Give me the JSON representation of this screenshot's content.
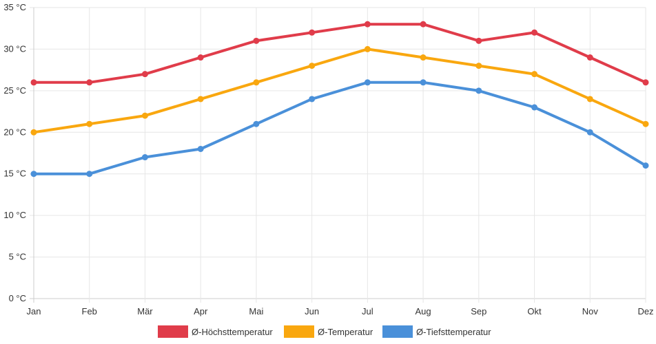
{
  "chart_data": {
    "type": "line",
    "title": "",
    "xlabel": "",
    "ylabel": "",
    "categories": [
      "Jan",
      "Feb",
      "Mär",
      "Apr",
      "Mai",
      "Jun",
      "Jul",
      "Aug",
      "Sep",
      "Okt",
      "Nov",
      "Dez"
    ],
    "ylim": [
      0,
      35
    ],
    "yticks": [
      0,
      5,
      10,
      15,
      20,
      25,
      30,
      35
    ],
    "ytick_labels": [
      "0 °C",
      "5 °C",
      "10 °C",
      "15 °C",
      "20 °C",
      "25 °C",
      "30 °C",
      "35 °C"
    ],
    "grid": true,
    "legend_position": "bottom",
    "series": [
      {
        "name": "Ø-Höchsttemperatur",
        "color": "#e03c4a",
        "values": [
          26,
          26,
          27,
          29,
          31,
          32,
          33,
          33,
          31,
          32,
          29,
          26
        ]
      },
      {
        "name": "Ø-Temperatur",
        "color": "#f9a70f",
        "values": [
          20,
          21,
          22,
          24,
          26,
          28,
          30,
          29,
          28,
          27,
          24,
          21
        ]
      },
      {
        "name": "Ø-Tiefsttemperatur",
        "color": "#4a90d9",
        "values": [
          15,
          15,
          17,
          18,
          21,
          24,
          26,
          26,
          25,
          23,
          20,
          16
        ]
      }
    ]
  }
}
